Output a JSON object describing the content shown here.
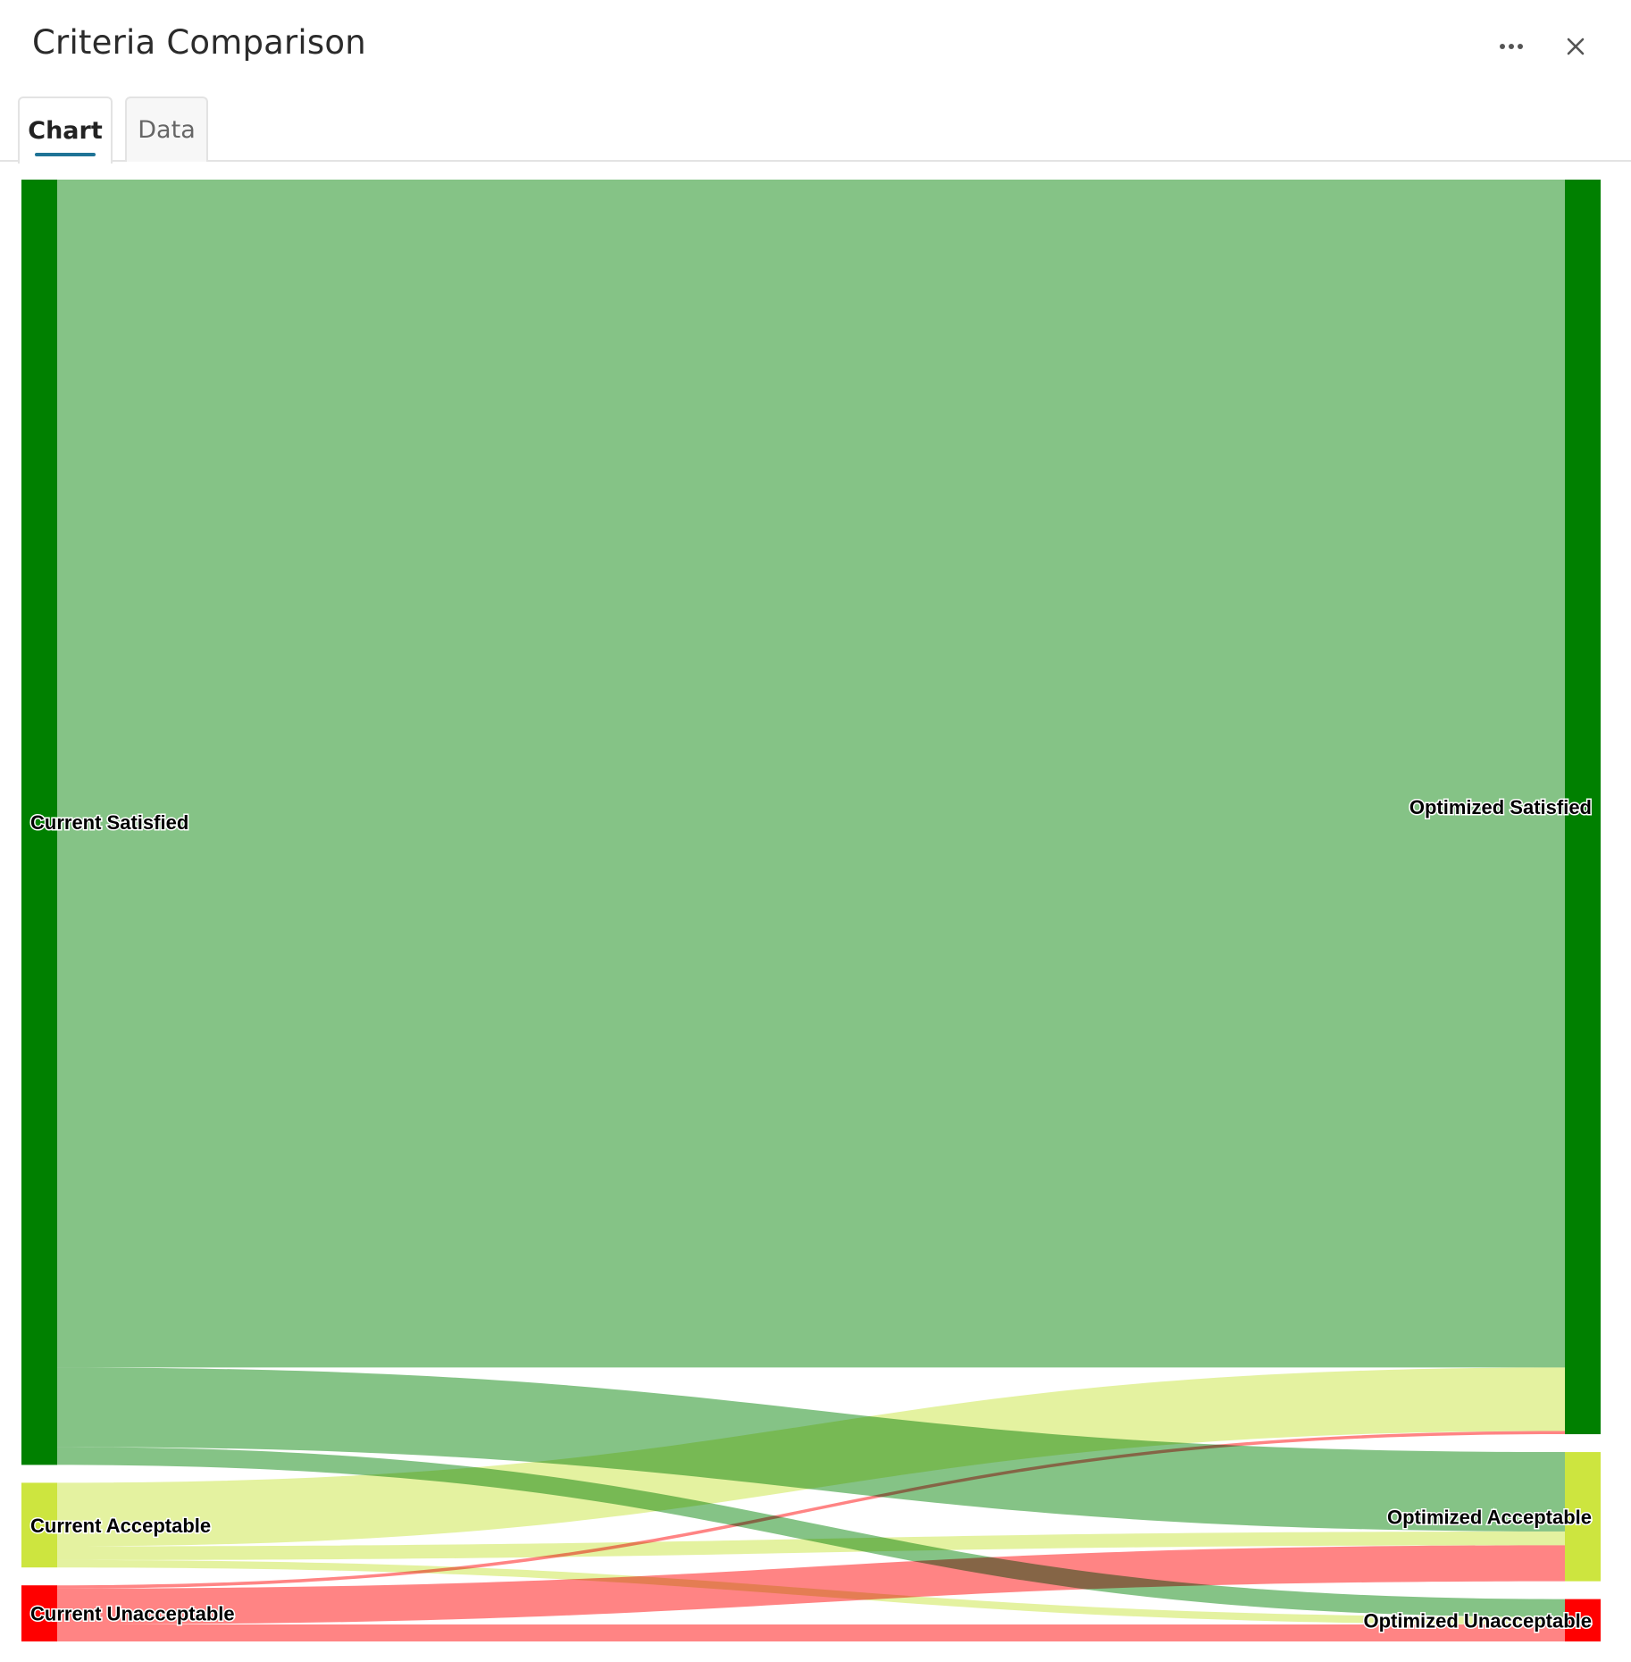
{
  "header": {
    "title": "Criteria Comparison",
    "more_icon": "more-horizontal-icon",
    "close_icon": "close-icon"
  },
  "tabs": [
    {
      "label": "Chart",
      "active": true
    },
    {
      "label": "Data",
      "active": false
    }
  ],
  "chart_data": {
    "type": "sankey",
    "nodes": [
      {
        "id": "cs",
        "label": "Current Satisfied",
        "column": "left",
        "color": "#008000"
      },
      {
        "id": "ca",
        "label": "Current Acceptable",
        "column": "left",
        "color": "#cde53f"
      },
      {
        "id": "cu",
        "label": "Current Unacceptable",
        "column": "left",
        "color": "#ff0000"
      },
      {
        "id": "os",
        "label": "Optimized Satisfied",
        "column": "right",
        "color": "#008000"
      },
      {
        "id": "oa",
        "label": "Optimized Acceptable",
        "column": "right",
        "color": "#cde53f"
      },
      {
        "id": "ou",
        "label": "Optimized Unacceptable",
        "column": "right",
        "color": "#ff0000"
      }
    ],
    "links": [
      {
        "source": "cs",
        "target": "os",
        "value": 1122,
        "color": "#81c182"
      },
      {
        "source": "cs",
        "target": "oa",
        "value": 75,
        "color": "#81c182"
      },
      {
        "source": "cs",
        "target": "ou",
        "value": 17,
        "color": "#81c182"
      },
      {
        "source": "ca",
        "target": "os",
        "value": 60,
        "color": "#e3f29d"
      },
      {
        "source": "ca",
        "target": "oa",
        "value": 13,
        "color": "#e3f29d"
      },
      {
        "source": "ca",
        "target": "ou",
        "value": 7,
        "color": "#e3f29d"
      },
      {
        "source": "cu",
        "target": "os",
        "value": 3,
        "color": "#ff8080"
      },
      {
        "source": "cu",
        "target": "oa",
        "value": 34,
        "color": "#ff8080"
      },
      {
        "source": "cu",
        "target": "ou",
        "value": 16,
        "color": "#ff8080"
      }
    ]
  }
}
